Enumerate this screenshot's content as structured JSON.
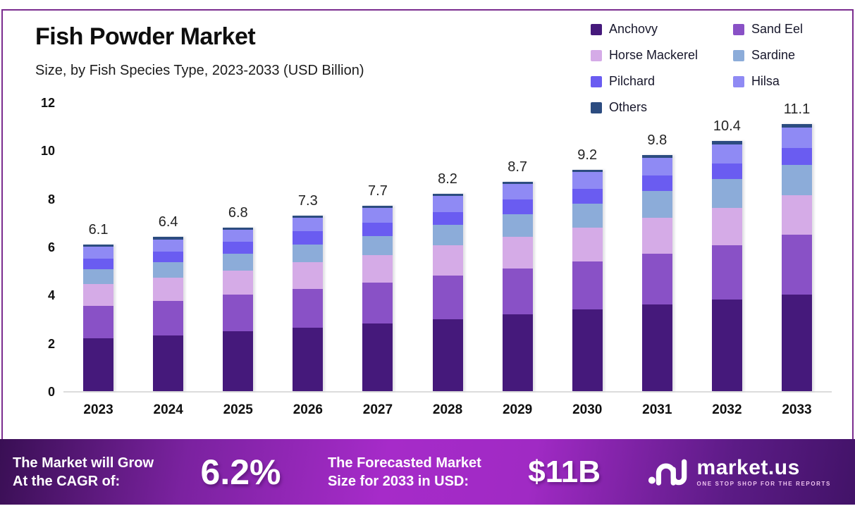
{
  "header": {
    "title": "Fish Powder Market",
    "subtitle": "Size, by Fish Species Type, 2023-2033 (USD Billion)"
  },
  "chart_data": {
    "type": "bar",
    "stacked": true,
    "title": "Fish Powder Market Size, by Fish Species Type, 2023-2033 (USD Billion)",
    "categories": [
      "2023",
      "2024",
      "2025",
      "2026",
      "2027",
      "2028",
      "2029",
      "2030",
      "2031",
      "2032",
      "2033"
    ],
    "series": [
      {
        "name": "Anchovy",
        "color": "#45197b",
        "values": [
          2.2,
          2.3,
          2.5,
          2.65,
          2.8,
          3.0,
          3.2,
          3.4,
          3.6,
          3.8,
          4.0
        ]
      },
      {
        "name": "Sand Eel",
        "color": "#8951c6",
        "values": [
          1.35,
          1.45,
          1.5,
          1.6,
          1.7,
          1.8,
          1.9,
          2.0,
          2.1,
          2.25,
          2.5
        ]
      },
      {
        "name": "Horse Mackerel",
        "color": "#d5abe7",
        "values": [
          0.9,
          0.95,
          1.0,
          1.1,
          1.15,
          1.25,
          1.3,
          1.4,
          1.5,
          1.55,
          1.65
        ]
      },
      {
        "name": "Sardine",
        "color": "#8cacd9",
        "values": [
          0.6,
          0.65,
          0.7,
          0.75,
          0.8,
          0.85,
          0.95,
          1.0,
          1.1,
          1.2,
          1.25
        ]
      },
      {
        "name": "Pilchard",
        "color": "#6a5cf1",
        "values": [
          0.45,
          0.45,
          0.5,
          0.55,
          0.55,
          0.55,
          0.6,
          0.6,
          0.65,
          0.65,
          0.7
        ]
      },
      {
        "name": "Hilsa",
        "color": "#8f8af4",
        "values": [
          0.5,
          0.5,
          0.5,
          0.55,
          0.6,
          0.65,
          0.65,
          0.7,
          0.75,
          0.8,
          0.85
        ]
      },
      {
        "name": "Others",
        "color": "#2c4c80",
        "values": [
          0.1,
          0.1,
          0.1,
          0.1,
          0.1,
          0.1,
          0.1,
          0.1,
          0.1,
          0.15,
          0.15
        ]
      }
    ],
    "totals": [
      6.1,
      6.4,
      6.8,
      7.3,
      7.7,
      8.2,
      8.7,
      9.2,
      9.8,
      10.4,
      11.1
    ],
    "y_ticks": [
      0,
      2,
      4,
      6,
      8,
      10,
      12
    ],
    "ylim": [
      0,
      12
    ],
    "grid": false,
    "legend_position": "top-right"
  },
  "banner": {
    "grow_line1": "The Market will Grow",
    "grow_line2": "At the CAGR of:",
    "cagr_value": "6.2%",
    "forecast_line1": "The Forecasted Market",
    "forecast_line2": "Size for 2033 in USD:",
    "forecast_value": "$11B",
    "brand_name": "market.us",
    "brand_tagline": "ONE STOP SHOP FOR THE REPORTS"
  },
  "colors": {
    "card_border": "#7b2d8f",
    "banner_dark": "#390f54",
    "banner_bright": "#a62bc9",
    "baseline": "#dcdcdc",
    "text": "#0e0e0e"
  }
}
